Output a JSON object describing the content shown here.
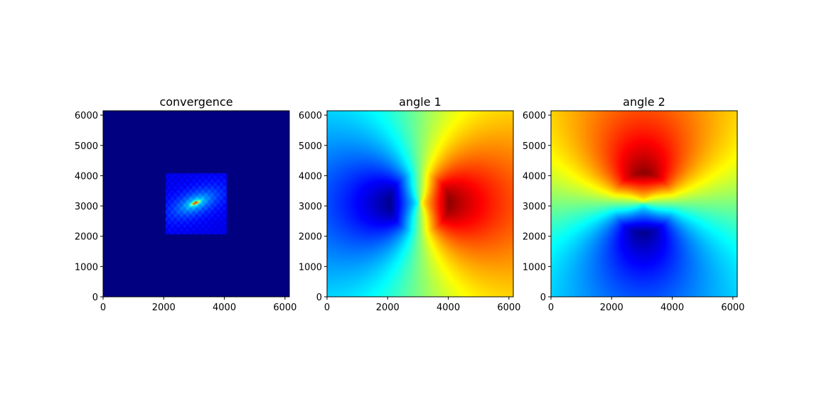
{
  "chart_data": [
    {
      "type": "heatmap",
      "title": "convergence",
      "colormap": "jet",
      "field": "convergence",
      "xlim": [
        0,
        6144
      ],
      "ylim": [
        0,
        6144
      ],
      "xticks": [
        0,
        2000,
        4000,
        6000
      ],
      "yticks": [
        0,
        1000,
        2000,
        3000,
        4000,
        5000,
        6000
      ],
      "xtick_labels": [
        "0",
        "2000",
        "4000",
        "6000"
      ],
      "ytick_labels": [
        "0",
        "1000",
        "2000",
        "3000",
        "4000",
        "5000",
        "6000"
      ],
      "features": {
        "inner_box": [
          2050,
          4100,
          2050,
          4100
        ],
        "peak_center": [
          3050,
          3100
        ]
      }
    },
    {
      "type": "heatmap",
      "title": "angle 1",
      "colormap": "jet",
      "field": "angle_x",
      "xlim": [
        0,
        6144
      ],
      "ylim": [
        0,
        6144
      ],
      "xticks": [
        0,
        2000,
        4000,
        6000
      ],
      "yticks": [
        0,
        1000,
        2000,
        3000,
        4000,
        5000,
        6000
      ],
      "xtick_labels": [
        "0",
        "2000",
        "4000",
        "6000"
      ],
      "ytick_labels": [
        "0",
        "1000",
        "2000",
        "3000",
        "4000",
        "5000",
        "6000"
      ],
      "features": {
        "center": [
          3050,
          3100
        ]
      }
    },
    {
      "type": "heatmap",
      "title": "angle 2",
      "colormap": "jet",
      "field": "angle_y",
      "xlim": [
        0,
        6144
      ],
      "ylim": [
        0,
        6144
      ],
      "xticks": [
        0,
        2000,
        4000,
        6000
      ],
      "yticks": [
        0,
        1000,
        2000,
        3000,
        4000,
        5000,
        6000
      ],
      "xtick_labels": [
        "0",
        "2000",
        "4000",
        "6000"
      ],
      "ytick_labels": [
        "0",
        "1000",
        "2000",
        "3000",
        "4000",
        "5000",
        "6000"
      ],
      "features": {
        "center": [
          3050,
          3100
        ]
      }
    }
  ]
}
